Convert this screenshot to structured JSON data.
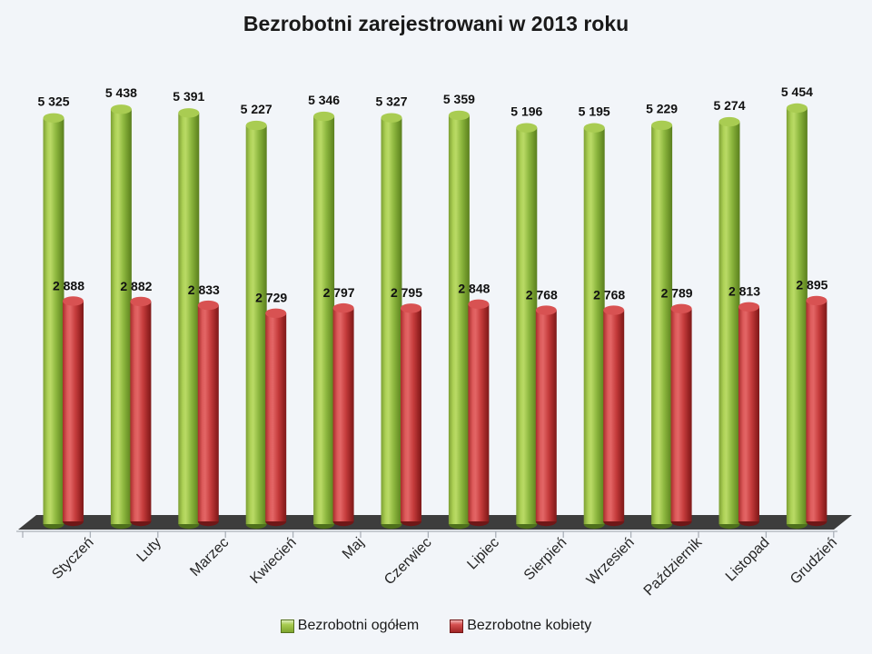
{
  "title": "Bezrobotni zarejestrowani w 2013 roku",
  "chart_data": {
    "type": "bar",
    "subtype": "3d-cylinder",
    "title": "Bezrobotni zarejestrowani w 2013 roku",
    "categories": [
      "Styczeń",
      "Luty",
      "Marzec",
      "Kwiecień",
      "Maj",
      "Czerwiec",
      "Lipiec",
      "Sierpień",
      "Wrzesień",
      "Październik",
      "Listopad",
      "Grudzień"
    ],
    "series": [
      {
        "name": "Bezrobotni ogółem",
        "color": "#8cb63e",
        "values": [
          5325,
          5438,
          5391,
          5227,
          5346,
          5327,
          5359,
          5196,
          5195,
          5229,
          5274,
          5454
        ],
        "labels": [
          "5 325",
          "5 438",
          "5 391",
          "5 227",
          "5 346",
          "5 327",
          "5 359",
          "5 196",
          "5 195",
          "5 229",
          "5 274",
          "5 454"
        ]
      },
      {
        "name": "Bezrobotne kobiety",
        "color": "#c43b3b",
        "values": [
          2888,
          2882,
          2833,
          2729,
          2797,
          2795,
          2848,
          2768,
          2768,
          2789,
          2813,
          2895
        ],
        "labels": [
          "2 888",
          "2 882",
          "2 833",
          "2 729",
          "2 797",
          "2 795",
          "2 848",
          "2 768",
          "2 768",
          "2 789",
          "2 813",
          "2 895"
        ]
      }
    ],
    "ylim": [
      0,
      5454
    ],
    "y_axis_visible": false,
    "grid": false,
    "legend_position": "bottom",
    "floor_color": "#3d3d3d",
    "background_color": "#f2f5f9"
  },
  "legend": {
    "items": [
      {
        "label": "Bezrobotni ogółem",
        "color": "#8cb63e"
      },
      {
        "label": "Bezrobotne kobiety",
        "color": "#c43b3b"
      }
    ]
  }
}
